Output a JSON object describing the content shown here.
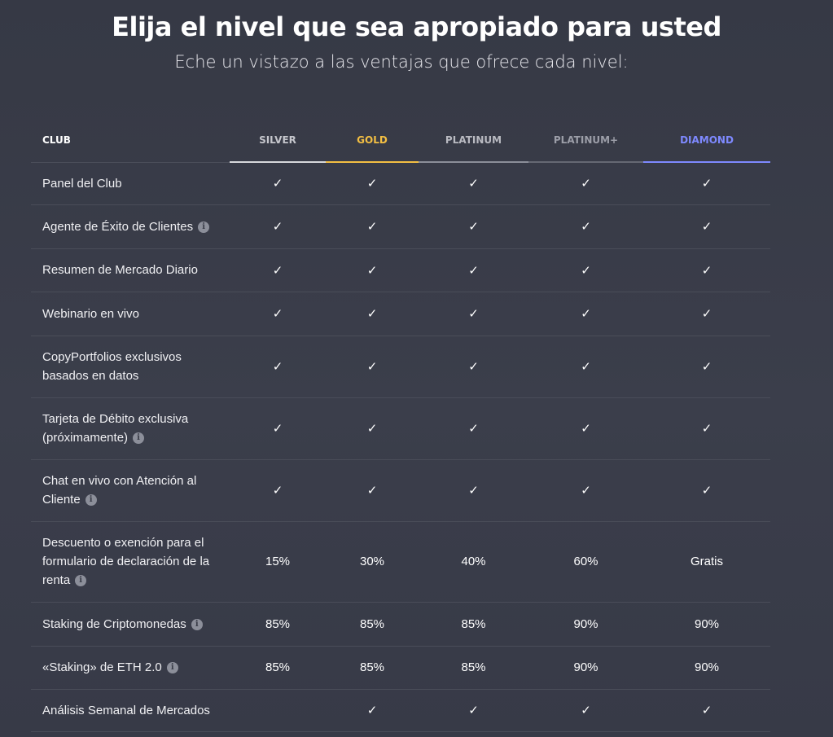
{
  "header": {
    "title": "Elija el nivel que sea apropiado para usted",
    "subtitle": "Eche un vistazo a las ventajas que ofrece cada nivel:"
  },
  "table": {
    "columns": [
      "CLUB",
      "SILVER",
      "GOLD",
      "PLATINUM",
      "PLATINUM+",
      "DIAMOND"
    ],
    "info_glyph": "i",
    "check_glyph": "✓",
    "rows": [
      {
        "label": "Panel del Club",
        "info": false,
        "height": 52,
        "values": [
          "✓",
          "✓",
          "✓",
          "✓",
          "✓"
        ]
      },
      {
        "label": "Agente de Éxito de Clientes",
        "info": true,
        "height": 54,
        "values": [
          "✓",
          "✓",
          "✓",
          "✓",
          "✓"
        ]
      },
      {
        "label": "Resumen de Mercado Diario",
        "info": false,
        "height": 53,
        "values": [
          "✓",
          "✓",
          "✓",
          "✓",
          "✓"
        ]
      },
      {
        "label": "Webinario en vivo",
        "info": false,
        "height": 54,
        "values": [
          "✓",
          "✓",
          "✓",
          "✓",
          "✓"
        ]
      },
      {
        "label": "CopyPortfolios exclusivos basados en datos",
        "info": false,
        "height": 76,
        "values": [
          "✓",
          "✓",
          "✓",
          "✓",
          "✓"
        ]
      },
      {
        "label": "Tarjeta de Débito exclusiva (próximamente)",
        "info": true,
        "height": 76,
        "values": [
          "✓",
          "✓",
          "✓",
          "✓",
          "✓"
        ]
      },
      {
        "label": "Chat en vivo con Atención al Cliente",
        "info": true,
        "height": 76,
        "values": [
          "✓",
          "✓",
          "✓",
          "✓",
          "✓"
        ]
      },
      {
        "label": "Descuento o exención para el formulario de declaración de la renta",
        "info": true,
        "height": 99,
        "values": [
          "15%",
          "30%",
          "40%",
          "60%",
          "Gratis"
        ]
      },
      {
        "label": "Staking de Criptomonedas",
        "info": true,
        "height": 54,
        "values": [
          "85%",
          "85%",
          "85%",
          "90%",
          "90%"
        ]
      },
      {
        "label": "«Staking» de ETH 2.0",
        "info": true,
        "height": 53,
        "values": [
          "85%",
          "85%",
          "85%",
          "90%",
          "90%"
        ]
      },
      {
        "label": "Análisis Semanal de Mercados",
        "info": false,
        "height": 52,
        "values": [
          "",
          "✓",
          "✓",
          "✓",
          "✓"
        ]
      }
    ]
  }
}
